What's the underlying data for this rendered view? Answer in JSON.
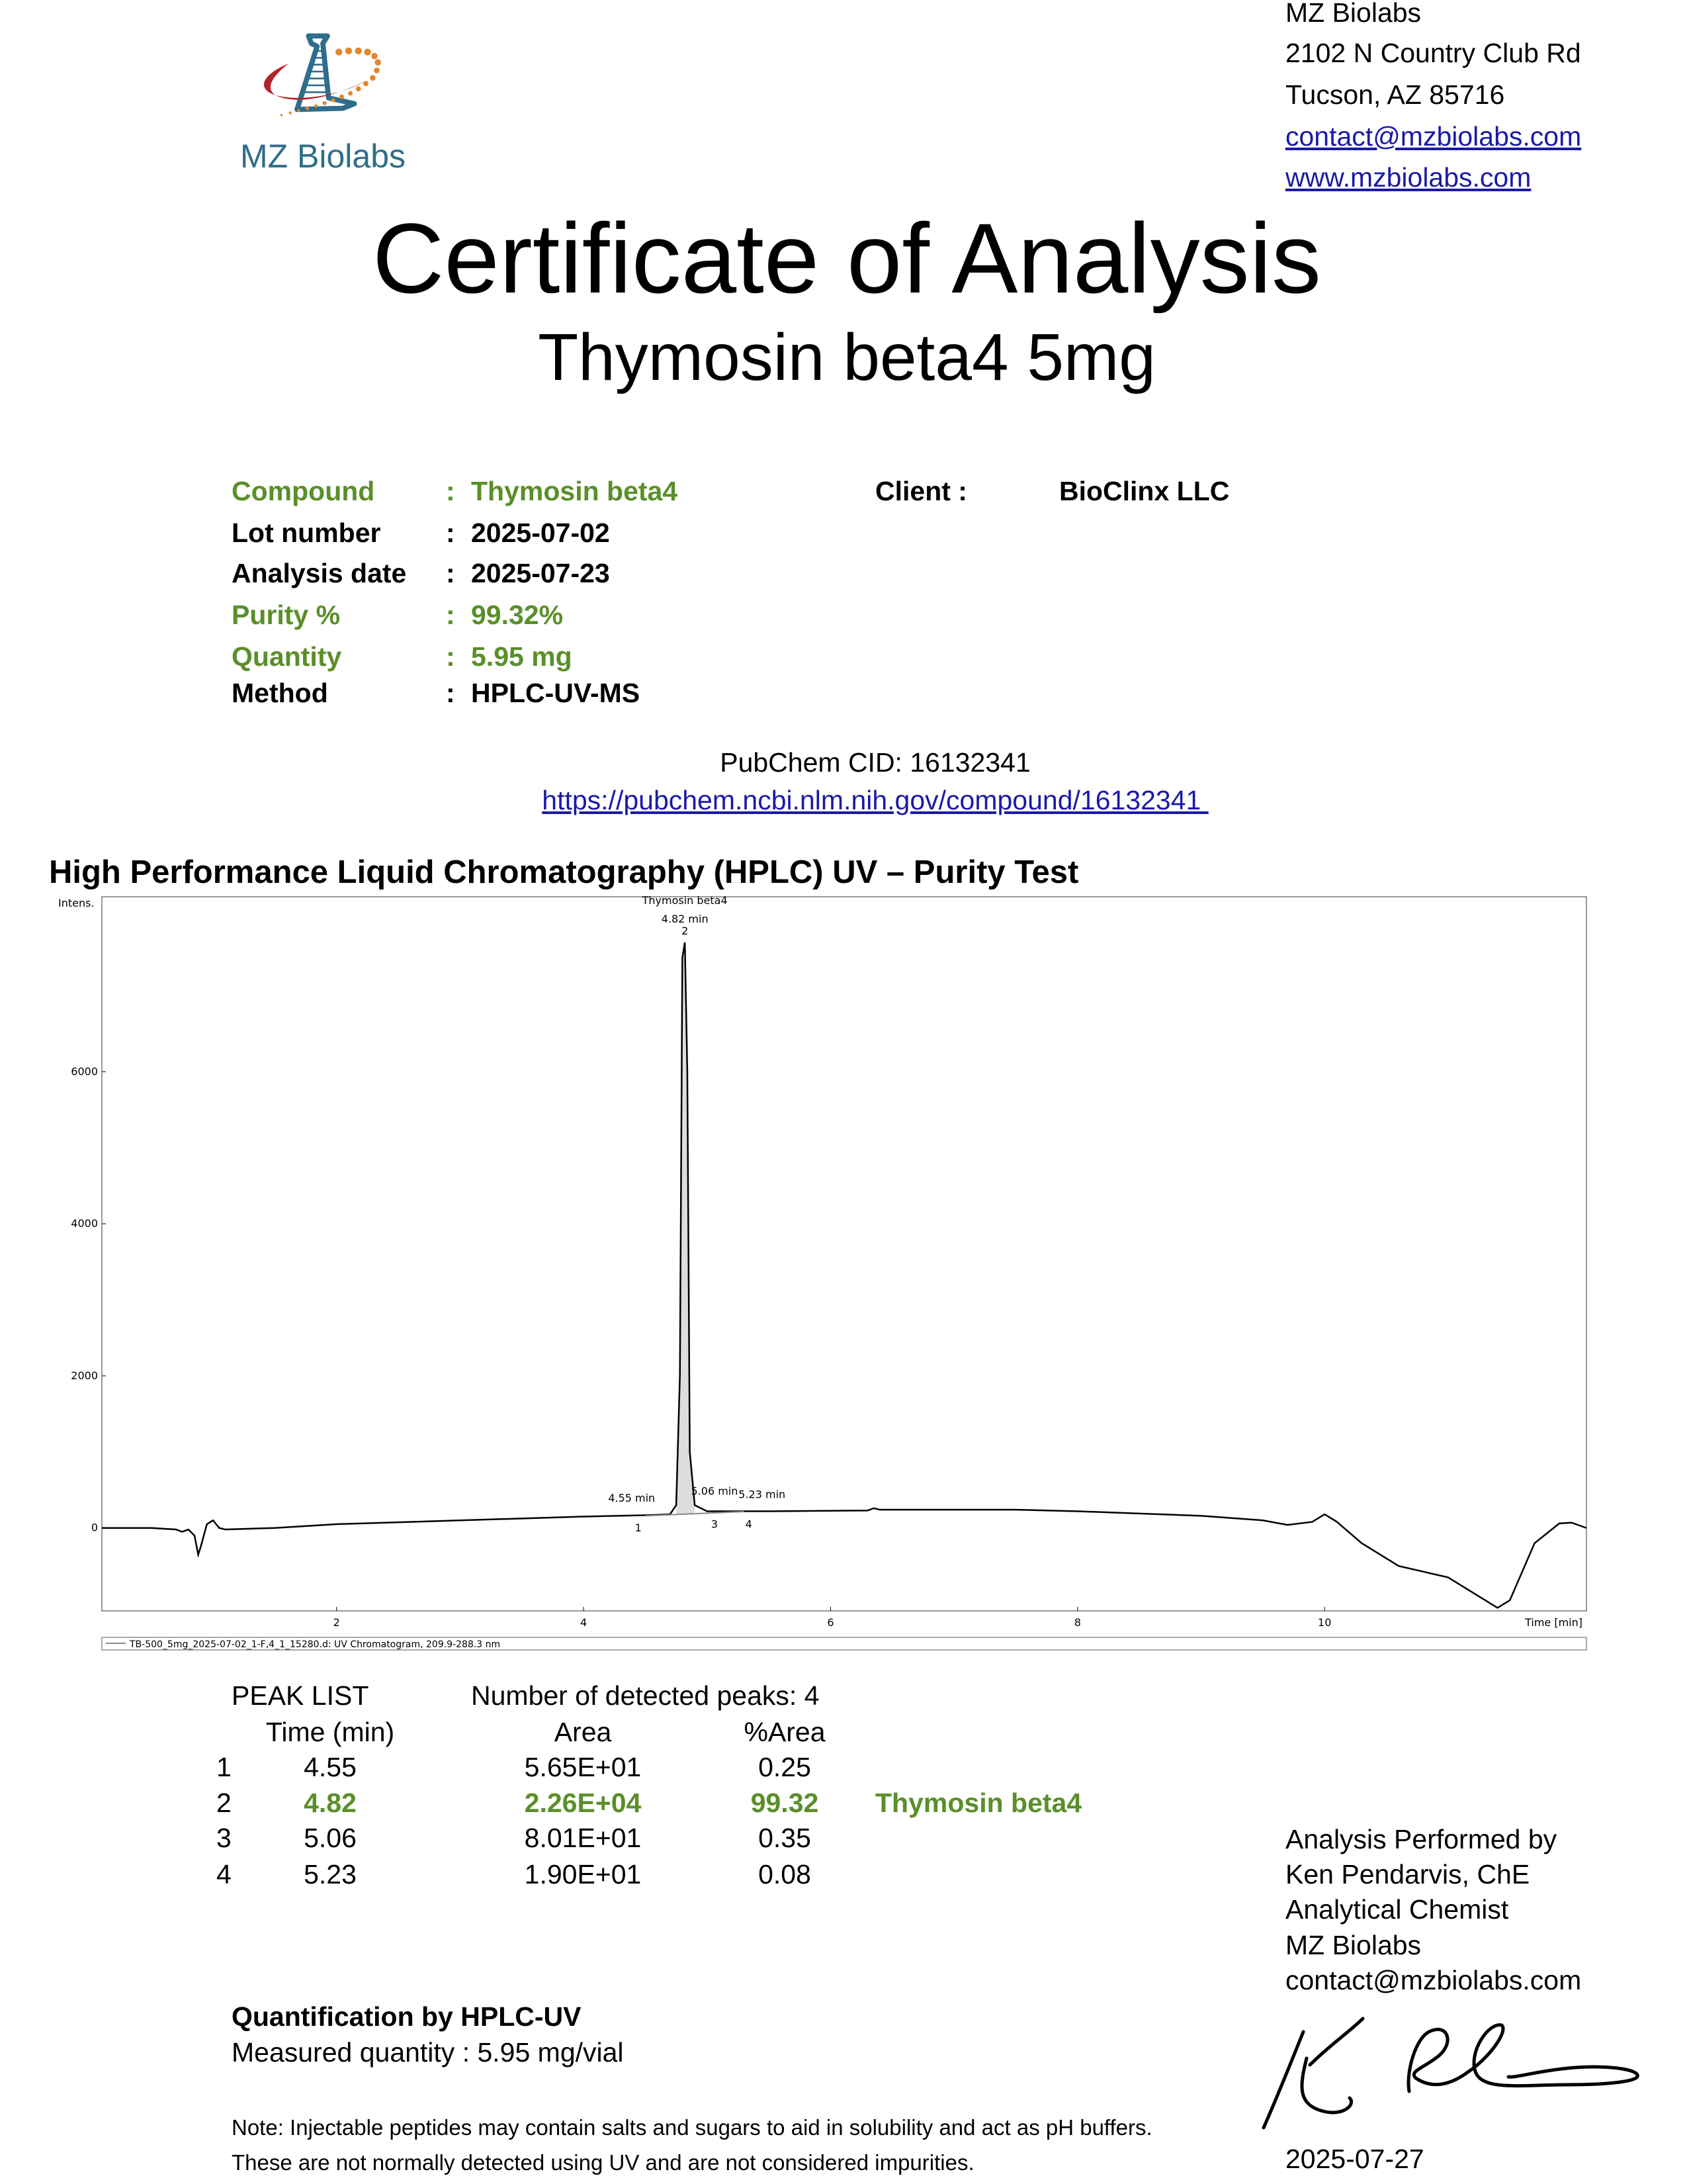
{
  "header": {
    "logo_text": "MZ Biolabs",
    "company": "MZ Biolabs",
    "address_line1": "2102 N Country Club Rd",
    "address_line2": "Tucson, AZ 85716",
    "email": "contact@mzbiolabs.com",
    "website": "www.mzbiolabs.com",
    "colors": {
      "logo_blue": "#2e6e8a",
      "logo_red": "#b3232a",
      "logo_orange": "#e2862e"
    }
  },
  "title": "Certificate of Analysis",
  "subtitle": "Thymosin beta4  5mg",
  "info": {
    "colon": ":",
    "rows": [
      {
        "label": "Compound",
        "value": "Thymosin beta4",
        "highlight": true
      },
      {
        "label": "Lot number",
        "value": "2025-07-02",
        "highlight": false
      },
      {
        "label": "Analysis date",
        "value": "2025-07-23",
        "highlight": false
      },
      {
        "label": "Purity %",
        "value": "99.32%",
        "highlight": true
      },
      {
        "label": "Quantity",
        "value": "5.95 mg",
        "highlight": true
      },
      {
        "label": "Method",
        "value": "HPLC-UV-MS",
        "highlight": false
      }
    ],
    "client_label": "Client :",
    "client_value": "BioClinx LLC",
    "highlight_color": "#5a8f29"
  },
  "pubchem": {
    "cid": "PubChem CID: 16132341",
    "url": "https://pubchem.ncbi.nlm.nih.gov/compound/16132341 "
  },
  "hplc_heading": "High Performance Liquid Chromatography (HPLC) UV – Purity Test",
  "chart_data": {
    "type": "line",
    "ylabel": "Intens.",
    "xlabel": "Time [min]",
    "xlim": [
      0.1,
      12.12
    ],
    "ylim": [
      -1090,
      8300
    ],
    "xticks": [
      2,
      4,
      6,
      8,
      10
    ],
    "yticks": [
      0,
      2000,
      4000,
      6000
    ],
    "grid": false,
    "legend": "TB-500_5mg_2025-07-02_1-F,4_1_15280.d: UV Chromatogram, 209.9-288.3 nm",
    "legend_placement": "bottom",
    "series": [
      {
        "x": [
          0.1,
          0.5,
          0.7,
          0.75,
          0.8,
          0.85,
          0.88,
          0.9,
          0.95,
          1.0,
          1.05,
          1.1,
          1.5,
          2.0,
          3.0,
          4.0,
          4.55,
          4.7,
          4.75,
          4.78,
          4.8,
          4.82,
          4.84,
          4.86,
          4.9,
          5.0,
          5.5,
          6.3,
          6.35,
          6.4,
          7.0,
          7.5,
          8.0,
          9.0,
          9.5,
          9.7,
          9.9,
          10.0,
          10.1,
          10.3,
          10.6,
          11.0,
          11.2,
          11.4,
          11.5,
          11.7,
          11.9,
          12.0,
          12.12
        ],
        "y": [
          0,
          0,
          -20,
          -50,
          -20,
          -100,
          -350,
          -250,
          50,
          100,
          0,
          -20,
          0,
          50,
          100,
          150,
          170,
          180,
          300,
          2000,
          7500,
          7700,
          6000,
          1000,
          300,
          220,
          220,
          230,
          260,
          240,
          240,
          240,
          220,
          160,
          100,
          40,
          80,
          180,
          80,
          -200,
          -500,
          -650,
          -850,
          -1050,
          -950,
          -200,
          60,
          70,
          0
        ]
      }
    ],
    "peaks": [
      {
        "num": "1",
        "time": 4.55,
        "label": "4.55 min",
        "y": 170
      },
      {
        "num": "2",
        "time": 4.82,
        "label": "4.82 min",
        "name": "Thymosin beta4",
        "y": 7700
      },
      {
        "num": "3",
        "time": 5.06,
        "label": "5.06 min",
        "y": 220
      },
      {
        "num": "4",
        "time": 5.23,
        "label": "5.23 min",
        "y": 220
      }
    ]
  },
  "peak_list": {
    "title": "PEAK LIST",
    "detected": "Number of detected peaks: 4",
    "columns": [
      "Time (min)",
      "Area",
      "%Area"
    ],
    "rows": [
      {
        "n": "1",
        "time": "4.55",
        "area": "5.65E+01",
        "pct": "0.25",
        "name": ""
      },
      {
        "n": "2",
        "time": "4.82",
        "area": "2.26E+04",
        "pct": "99.32",
        "name": "Thymosin beta4"
      },
      {
        "n": "3",
        "time": "5.06",
        "area": "8.01E+01",
        "pct": "0.35",
        "name": ""
      },
      {
        "n": "4",
        "time": "5.23",
        "area": "1.90E+01",
        "pct": "0.08",
        "name": ""
      }
    ]
  },
  "analyst": {
    "line1": "Analysis Performed by",
    "line2": "Ken Pendarvis, ChE",
    "line3": "Analytical Chemist",
    "line4": "MZ Biolabs",
    "line5": "contact@mzbiolabs.com",
    "date": "2025-07-27"
  },
  "quantification": {
    "heading": "Quantification by HPLC-UV",
    "measured": "Measured quantity : 5.95 mg/vial"
  },
  "note": {
    "line1": "Note: Injectable peptides may contain salts and sugars to aid in solubility and act as pH buffers.",
    "line2": "These are not normally detected using UV and are not considered impurities."
  }
}
